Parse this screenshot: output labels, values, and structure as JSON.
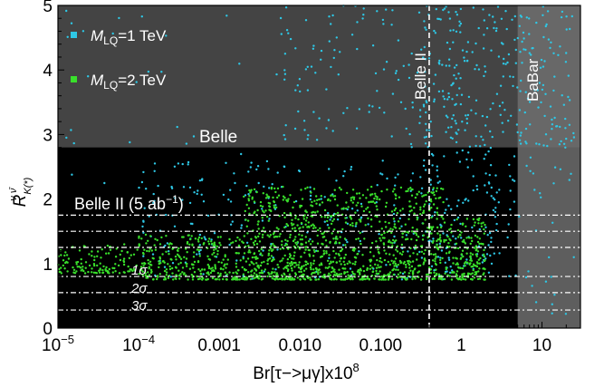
{
  "chart_data": {
    "type": "scatter",
    "xscale": "log",
    "xlim": [
      1e-05,
      30
    ],
    "ylim": [
      0,
      5
    ],
    "xlabel": "Br[τ−>μγ]x10",
    "xlabel_exponent": "8",
    "ylabel": "R",
    "ylabel_sup": "ν ν̄",
    "ylabel_sub": "K(*)",
    "x_ticks": [
      {
        "value": 1e-05,
        "label": "10",
        "exp": "−5"
      },
      {
        "value": 0.0001,
        "label": "10",
        "exp": "−4"
      },
      {
        "value": 0.001,
        "label": "0.001"
      },
      {
        "value": 0.01,
        "label": "0.010"
      },
      {
        "value": 0.1,
        "label": "0.100"
      },
      {
        "value": 1,
        "label": "1"
      },
      {
        "value": 10,
        "label": "10"
      }
    ],
    "y_ticks": [
      {
        "value": 0,
        "label": "0"
      },
      {
        "value": 1,
        "label": "1"
      },
      {
        "value": 2,
        "label": "2"
      },
      {
        "value": 3,
        "label": "3"
      },
      {
        "value": 4,
        "label": "4"
      },
      {
        "value": 5,
        "label": "5"
      }
    ],
    "grid": false,
    "legend_position": "top-left",
    "series": [
      {
        "name": "M_LQ=1 TeV",
        "name_parts": [
          "M",
          "LQ",
          "=1 TeV"
        ],
        "color": "#2ec8e6",
        "marker": "square-dots",
        "density": [
          {
            "x": [
              0.0001,
              0.3
            ],
            "y": [
              0.75,
              2.6
            ],
            "n": 220
          },
          {
            "x": [
              0.3,
              3
            ],
            "y": [
              0.75,
              2.8
            ],
            "n": 140
          },
          {
            "x": [
              0.005,
              1
            ],
            "y": [
              2.8,
              5
            ],
            "n": 130
          },
          {
            "x": [
              0.3,
              25
            ],
            "y": [
              2.8,
              5
            ],
            "n": 260
          },
          {
            "x": [
              3,
              25
            ],
            "y": [
              0.2,
              2.8
            ],
            "n": 40
          },
          {
            "x": [
              1e-05,
              0.002
            ],
            "y": [
              1.6,
              5
            ],
            "n": 30
          }
        ]
      },
      {
        "name": "M_LQ=2 TeV",
        "name_parts": [
          "M",
          "LQ",
          "=2 TeV"
        ],
        "color": "#39e02b",
        "marker": "square-dots",
        "density": [
          {
            "x": [
              1e-05,
              0.0001
            ],
            "y": [
              0.85,
              1.3
            ],
            "n": 120
          },
          {
            "x": [
              0.0001,
              0.002
            ],
            "y": [
              0.75,
              1.45
            ],
            "n": 300
          },
          {
            "x": [
              0.002,
              0.6
            ],
            "y": [
              0.75,
              2.2
            ],
            "n": 1100
          },
          {
            "x": [
              0.6,
              2
            ],
            "y": [
              0.75,
              1.7
            ],
            "n": 180
          }
        ]
      }
    ],
    "regions": [
      {
        "name": "Belle",
        "type": "excluded",
        "y_min": 2.8,
        "color": "#444444"
      },
      {
        "name": "BaBar",
        "type": "excluded",
        "x_min": 5,
        "color": "#6e6e6e"
      }
    ],
    "vertical_lines": [
      {
        "x": 0.4,
        "label": "Belle II",
        "style": "dashed",
        "color": "#ffffff"
      }
    ],
    "sensitivity": {
      "label": "Belle II (5 ab",
      "label_exp": "−1",
      "label_end": ")",
      "band_edges": [
        0.28,
        0.55,
        0.8,
        1.25,
        1.5,
        1.75
      ],
      "sigma_labels": [
        {
          "text": "1σ",
          "y": 0.9
        },
        {
          "text": "2σ",
          "y": 0.62
        },
        {
          "text": "3σ",
          "y": 0.35
        }
      ]
    },
    "annotations": [
      {
        "text": "Belle"
      },
      {
        "text": "Belle II"
      },
      {
        "text": "BaBar"
      }
    ]
  }
}
